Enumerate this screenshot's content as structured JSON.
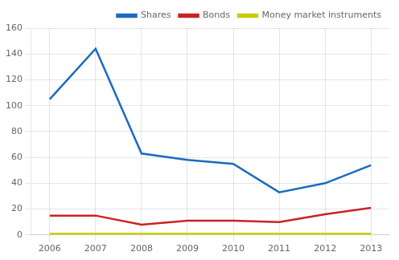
{
  "chart_data": {
    "type": "line",
    "x": [
      2006,
      2007,
      2008,
      2009,
      2010,
      2011,
      2012,
      2013
    ],
    "series": [
      {
        "name": "Shares",
        "color": "#1a6bbf",
        "values": [
          105,
          144,
          63,
          58,
          55,
          33,
          40,
          54
        ]
      },
      {
        "name": "Bonds",
        "color": "#cc2222",
        "values": [
          15,
          15,
          8,
          11,
          11,
          10,
          16,
          21
        ]
      },
      {
        "name": "Money market instruments",
        "color": "#cccc00",
        "values": [
          1,
          1,
          1,
          1,
          1,
          1,
          1,
          1
        ]
      }
    ],
    "xlim": [
      2005.6,
      2013.4
    ],
    "xticks": [
      2006,
      2007,
      2008,
      2009,
      2010,
      2011,
      2012,
      2013
    ],
    "ylim": [
      0,
      160
    ],
    "yticks": [
      0,
      20,
      40,
      60,
      80,
      100,
      120,
      140,
      160
    ],
    "grid": true,
    "legend": "upper right"
  }
}
